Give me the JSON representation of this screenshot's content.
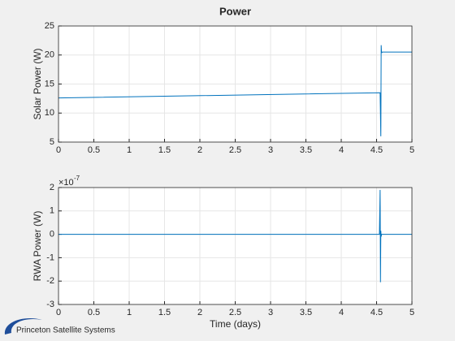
{
  "chart_data": [
    {
      "type": "line",
      "title": "Power",
      "ylabel": "Solar Power (W)",
      "x": [
        0,
        4.55,
        4.56,
        4.565,
        4.57,
        4.575,
        4.58,
        5
      ],
      "series": [
        {
          "color": "#0072bd",
          "values": [
            12.6,
            13.5,
            6,
            21.7,
            20.4,
            20.4,
            20.5,
            20.5
          ]
        }
      ],
      "xlim": [
        0,
        5
      ],
      "xticks": [
        0,
        0.5,
        1,
        1.5,
        2,
        2.5,
        3,
        3.5,
        4,
        4.5,
        5
      ],
      "ylim": [
        5,
        25
      ],
      "yticks": [
        5,
        10,
        15,
        20,
        25
      ],
      "grid": true
    },
    {
      "type": "line",
      "ylabel": "RWA Power (W)",
      "xlabel": "Time (days)",
      "exponent_base": "×10",
      "exponent": "-7",
      "x": [
        0,
        4.54,
        4.55,
        4.555,
        4.56,
        4.565,
        4.57,
        5
      ],
      "series": [
        {
          "color": "#0072bd",
          "values": [
            0,
            0,
            1.9,
            -2.05,
            0.15,
            -0.1,
            0,
            0
          ]
        }
      ],
      "xlim": [
        0,
        5
      ],
      "xticks": [
        0,
        0.5,
        1,
        1.5,
        2,
        2.5,
        3,
        3.5,
        4,
        4.5,
        5
      ],
      "ylim": [
        -3,
        2
      ],
      "yticks": [
        -3,
        -2,
        -1,
        0,
        1,
        2
      ],
      "grid": true
    }
  ],
  "logo": {
    "text": "Princeton Satellite Systems"
  }
}
